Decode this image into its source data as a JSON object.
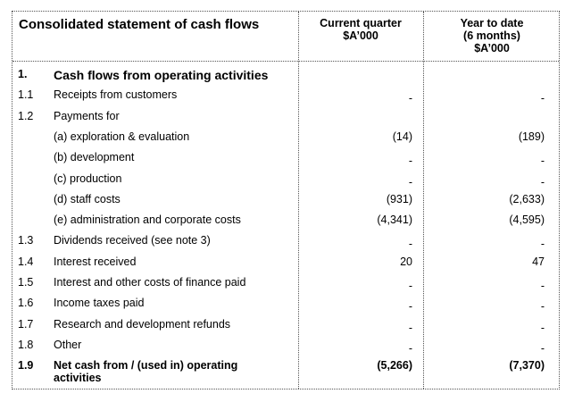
{
  "title": "Consolidated statement of cash flows",
  "col_current": [
    "Current quarter",
    "$A’000"
  ],
  "col_ytd": [
    "Year to date",
    "(6 months)",
    "$A’000"
  ],
  "rows": [
    {
      "num": "1.",
      "label": "Cash flows from operating activities",
      "current": "",
      "ytd": "",
      "bold": true
    },
    {
      "num": "1.1",
      "label": "Receipts from customers",
      "current": "-",
      "ytd": "-"
    },
    {
      "num": "1.2",
      "label": "Payments for",
      "current": "",
      "ytd": ""
    },
    {
      "num": "",
      "label": "(a)  exploration & evaluation",
      "current": "(14)",
      "ytd": "(189)"
    },
    {
      "num": "",
      "label": "(b)  development",
      "current": "-",
      "ytd": "-"
    },
    {
      "num": "",
      "label": "(c)  production",
      "current": "-",
      "ytd": "-"
    },
    {
      "num": "",
      "label": "(d)  staff costs",
      "current": "(931)",
      "ytd": "(2,633)"
    },
    {
      "num": "",
      "label": "(e)  administration and corporate costs",
      "current": "(4,341)",
      "ytd": "(4,595)"
    },
    {
      "num": "1.3",
      "label": "Dividends received (see note 3)",
      "current": "-",
      "ytd": "-"
    },
    {
      "num": "1.4",
      "label": "Interest received",
      "current": "20",
      "ytd": "47"
    },
    {
      "num": "1.5",
      "label": "Interest and other costs of finance paid",
      "current": "-",
      "ytd": "-"
    },
    {
      "num": "1.6",
      "label": "Income taxes paid",
      "current": "-",
      "ytd": "-"
    },
    {
      "num": "1.7",
      "label": "Research and development refunds",
      "current": "-",
      "ytd": "-"
    },
    {
      "num": "1.8",
      "label": "Other",
      "current": "-",
      "ytd": "-"
    },
    {
      "num": "1.9",
      "label": "Net cash from / (used in) operating",
      "label2": "activities",
      "current": "(5,266)",
      "ytd": "(7,370)",
      "bold": true
    }
  ]
}
